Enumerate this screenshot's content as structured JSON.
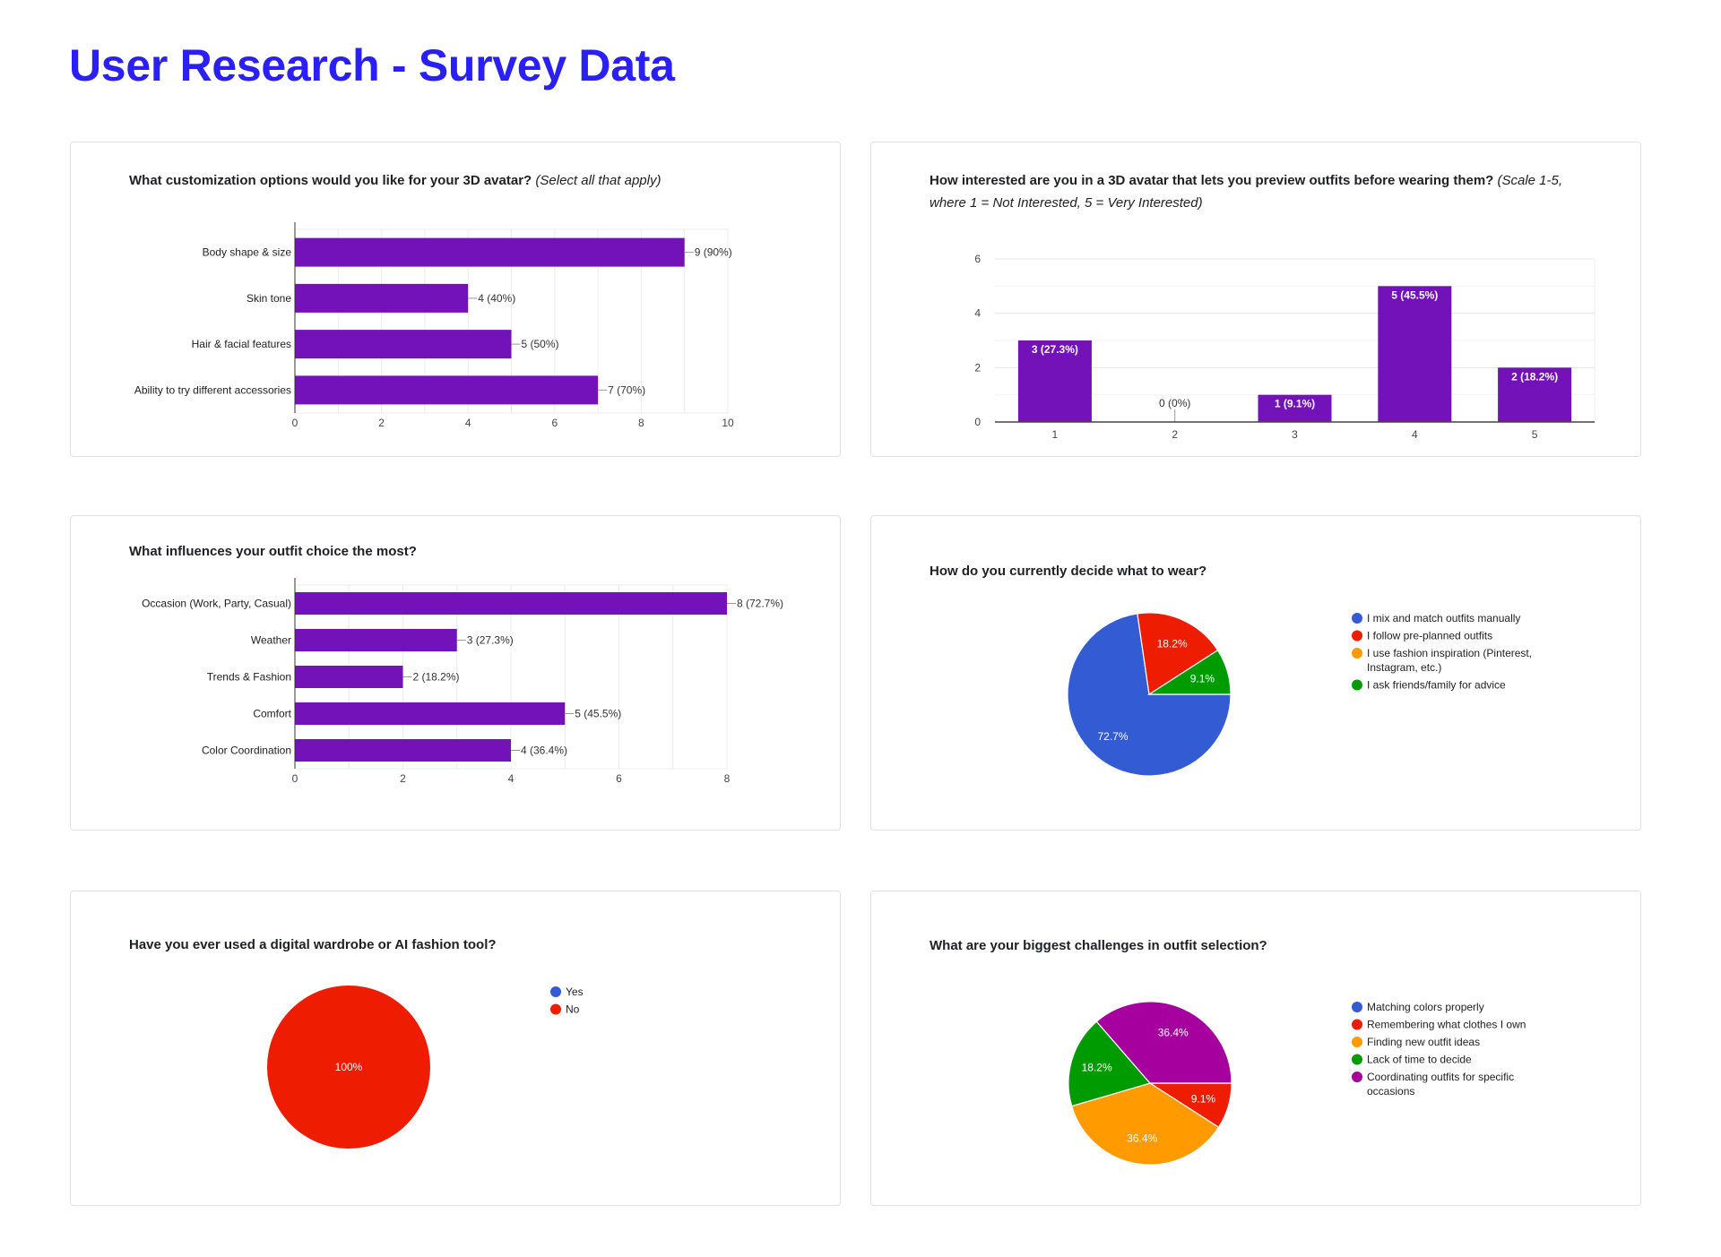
{
  "page": {
    "title": "User Research - Survey Data"
  },
  "colors": {
    "bar": "#7412BA",
    "title": "#2A20F5",
    "pie": [
      "#335CD4",
      "#EE1C00",
      "#FF9A00",
      "#009B00",
      "#A6009E"
    ]
  },
  "cards": [
    {
      "title_main": "What customization options would you like for your 3D avatar?",
      "title_note": "(Select all that apply)"
    },
    {
      "title_main": "How interested are you in a 3D avatar that lets you preview outfits before wearing them?",
      "title_note": "(Scale 1-5, where 1 = Not Interested, 5 = Very Interested)"
    },
    {
      "title_main": "What influences your outfit choice the most?",
      "title_note": ""
    },
    {
      "title_main": "How do you currently decide what to wear?",
      "title_note": ""
    },
    {
      "title_main": "Have you ever used a digital wardrobe or AI fashion tool?",
      "title_note": ""
    },
    {
      "title_main": "What are your biggest challenges in outfit selection?",
      "title_note": ""
    }
  ],
  "chart_data": [
    {
      "type": "bar",
      "orientation": "horizontal",
      "categories": [
        "Body shape & size",
        "Skin tone",
        "Hair & facial features",
        "Ability to try different accessories"
      ],
      "values": [
        9,
        4,
        5,
        7
      ],
      "data_labels": [
        "9 (90%)",
        "4 (40%)",
        "5 (50%)",
        "7 (70%)"
      ],
      "xlim": [
        0,
        10
      ],
      "xticks": [
        0,
        2,
        4,
        6,
        8,
        10
      ],
      "grid": true
    },
    {
      "type": "bar",
      "orientation": "vertical",
      "categories": [
        "1",
        "2",
        "3",
        "4",
        "5"
      ],
      "values": [
        3,
        0,
        1,
        5,
        2
      ],
      "data_labels": [
        "3 (27.3%)",
        "0 (0%)",
        "1 (9.1%)",
        "5 (45.5%)",
        "2 (18.2%)"
      ],
      "ylim": [
        0,
        6
      ],
      "yticks": [
        0,
        2,
        4,
        6
      ],
      "grid": true
    },
    {
      "type": "bar",
      "orientation": "horizontal",
      "categories": [
        "Occasion (Work, Party, Casual)",
        "Weather",
        "Trends & Fashion",
        "Comfort",
        "Color Coordination"
      ],
      "values": [
        8,
        3,
        2,
        5,
        4
      ],
      "data_labels": [
        "8 (72.7%)",
        "3 (27.3%)",
        "2 (18.2%)",
        "5 (45.5%)",
        "4 (36.4%)"
      ],
      "xlim": [
        0,
        8
      ],
      "xticks": [
        0,
        2,
        4,
        6,
        8
      ],
      "grid": true
    },
    {
      "type": "pie",
      "labels": [
        "I mix and match outfits manually",
        "I follow pre-planned outfits",
        "I use fashion inspiration (Pinterest, Instagram, etc.)",
        "I ask friends/family for advice"
      ],
      "values": [
        72.7,
        18.2,
        0,
        9.1
      ],
      "data_labels": [
        "72.7%",
        "18.2%",
        "",
        "9.1%"
      ],
      "legend": "right"
    },
    {
      "type": "pie",
      "labels": [
        "Yes",
        "No"
      ],
      "values": [
        0,
        100
      ],
      "data_labels": [
        "",
        "100%"
      ],
      "legend": "right"
    },
    {
      "type": "pie",
      "labels": [
        "Matching colors properly",
        "Remembering what clothes I own",
        "Finding new outfit ideas",
        "Lack of time to decide",
        "Coordinating outfits for specific occasions"
      ],
      "values": [
        0,
        9.1,
        36.4,
        18.2,
        36.4
      ],
      "data_labels": [
        "",
        "9.1%",
        "36.4%",
        "18.2%",
        "36.4%"
      ],
      "legend": "right"
    }
  ]
}
